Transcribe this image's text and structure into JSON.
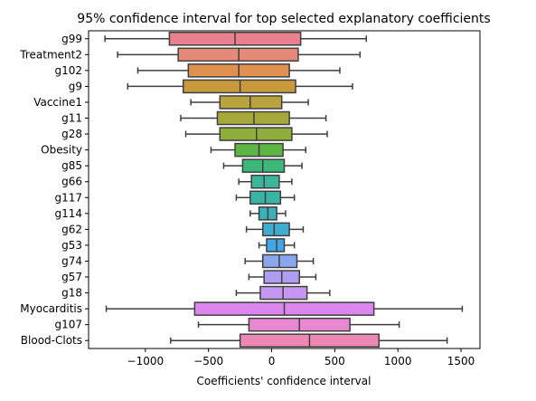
{
  "chart_data": {
    "type": "box",
    "orientation": "horizontal",
    "title": "95% confidence interval for top selected explanatory coefficients",
    "xlabel": "Coefficients' confidence interval",
    "ylabel": "",
    "xlim": [
      -1450,
      1650
    ],
    "xticks": [
      -1000,
      -500,
      0,
      500,
      1000,
      1500
    ],
    "xtick_labels": [
      "−1000",
      "−500",
      "0",
      "500",
      "1000",
      "1500"
    ],
    "grid": false,
    "series": [
      {
        "label": "g99",
        "whisker_low": -1320,
        "q1": -810,
        "median": -290,
        "q3": 230,
        "whisker_high": 750,
        "color": "#e8808d"
      },
      {
        "label": "Treatment2",
        "whisker_low": -1220,
        "q1": -740,
        "median": -260,
        "q3": 210,
        "whisker_high": 700,
        "color": "#e58a78"
      },
      {
        "label": "g102",
        "whisker_low": -1060,
        "q1": -660,
        "median": -260,
        "q3": 140,
        "whisker_high": 540,
        "color": "#de9150"
      },
      {
        "label": "g9",
        "whisker_low": -1140,
        "q1": -700,
        "median": -250,
        "q3": 190,
        "whisker_high": 640,
        "color": "#c99a3c"
      },
      {
        "label": "Vaccine1",
        "whisker_low": -640,
        "q1": -410,
        "median": -170,
        "q3": 80,
        "whisker_high": 290,
        "color": "#b8a33c"
      },
      {
        "label": "g11",
        "whisker_low": -720,
        "q1": -430,
        "median": -140,
        "q3": 140,
        "whisker_high": 430,
        "color": "#a6a83c"
      },
      {
        "label": "g28",
        "whisker_low": -680,
        "q1": -410,
        "median": -120,
        "q3": 160,
        "whisker_high": 440,
        "color": "#8fae3c"
      },
      {
        "label": "Obesity",
        "whisker_low": -480,
        "q1": -290,
        "median": -100,
        "q3": 90,
        "whisker_high": 270,
        "color": "#5db544"
      },
      {
        "label": "g85",
        "whisker_low": -380,
        "q1": -230,
        "median": -70,
        "q3": 100,
        "whisker_high": 240,
        "color": "#3db87a"
      },
      {
        "label": "g66",
        "whisker_low": -260,
        "q1": -160,
        "median": -60,
        "q3": 60,
        "whisker_high": 160,
        "color": "#3bb69c"
      },
      {
        "label": "g117",
        "whisker_low": -280,
        "q1": -170,
        "median": -50,
        "q3": 70,
        "whisker_high": 180,
        "color": "#3bb4a8"
      },
      {
        "label": "g114",
        "whisker_low": -170,
        "q1": -100,
        "median": -30,
        "q3": 40,
        "whisker_high": 110,
        "color": "#3cb2b8"
      },
      {
        "label": "g62",
        "whisker_low": -200,
        "q1": -70,
        "median": 20,
        "q3": 140,
        "whisker_high": 250,
        "color": "#3eaed0"
      },
      {
        "label": "g53",
        "whisker_low": -100,
        "q1": -40,
        "median": 40,
        "q3": 100,
        "whisker_high": 180,
        "color": "#42a6e8"
      },
      {
        "label": "g74",
        "whisker_low": -210,
        "q1": -70,
        "median": 60,
        "q3": 200,
        "whisker_high": 330,
        "color": "#8aa6ef"
      },
      {
        "label": "g57",
        "whisker_low": -180,
        "q1": -60,
        "median": 80,
        "q3": 220,
        "whisker_high": 350,
        "color": "#ad9ef2"
      },
      {
        "label": "g18",
        "whisker_low": -280,
        "q1": -90,
        "median": 90,
        "q3": 280,
        "whisker_high": 460,
        "color": "#c597f1"
      },
      {
        "label": "Myocarditis",
        "whisker_low": -1310,
        "q1": -610,
        "median": 100,
        "q3": 810,
        "whisker_high": 1510,
        "color": "#dd86ee"
      },
      {
        "label": "g107",
        "whisker_low": -580,
        "q1": -180,
        "median": 220,
        "q3": 620,
        "whisker_high": 1010,
        "color": "#ea87d2"
      },
      {
        "label": "Blood-Clots",
        "whisker_low": -800,
        "q1": -250,
        "median": 300,
        "q3": 850,
        "whisker_high": 1390,
        "color": "#ef86b4"
      }
    ]
  }
}
